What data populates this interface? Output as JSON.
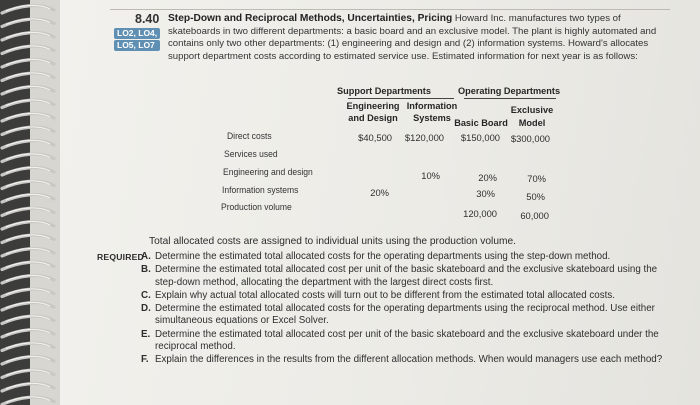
{
  "problem": {
    "number": "8.40",
    "badges": [
      "LO2, LO4,",
      "LO5, LO7"
    ],
    "title": "Step-Down and Reciprocal Methods, Uncertainties, Pricing",
    "intro": "Howard Inc. manufactures two types of skateboards in two different departments: a basic board and an exclusive model. The plant is highly automated and contains only two other departments: (1) engineering and design and (2) information systems. Howard's allocates support department costs according to estimated service use. Estimated information for next year is as follows:"
  },
  "table": {
    "group_headers": {
      "support": "Support Departments",
      "operating": "Operating Departments"
    },
    "col_headers": {
      "eng": [
        "Engineering",
        "and Design"
      ],
      "info": [
        "Information",
        "Systems"
      ],
      "basic": [
        "Basic Board"
      ],
      "excl": [
        "Exclusive",
        "Model"
      ]
    },
    "rows": [
      {
        "label": "Direct costs",
        "eng": "$40,500",
        "info": "$120,000",
        "basic": "$150,000",
        "excl": "$300,000"
      },
      {
        "label": "Services used",
        "eng": "",
        "info": "",
        "basic": "",
        "excl": ""
      },
      {
        "label": "Engineering and design",
        "eng": "",
        "info": "10%",
        "basic": "20%",
        "excl": "70%"
      },
      {
        "label": "Information systems",
        "eng": "20%",
        "info": "",
        "basic": "30%",
        "excl": "50%"
      },
      {
        "label": "Production volume",
        "eng": "",
        "info": "",
        "basic": "120,000",
        "excl": "60,000"
      }
    ]
  },
  "total_note": "Total allocated costs are assigned to individual units using the production volume.",
  "required": {
    "label": "REQUIRED",
    "items": [
      {
        "letter": "A.",
        "text": "Determine the estimated total allocated costs for the operating departments using the step-down method."
      },
      {
        "letter": "B.",
        "text": "Determine the estimated total allocated cost per unit of the basic skateboard and the exclusive skateboard using the step-down method, allocating the department with the largest direct costs first."
      },
      {
        "letter": "C.",
        "text": "Explain why actual total allocated costs will turn out to be different from the estimated total allocated costs."
      },
      {
        "letter": "D.",
        "text": "Determine the estimated total allocated costs for the operating departments using the reciprocal method. Use either simultaneous equations or Excel Solver."
      },
      {
        "letter": "E.",
        "text": "Determine the estimated total allocated cost per unit of the basic skateboard and the exclusive skateboard under the reciprocal method."
      },
      {
        "letter": "F.",
        "text": "Explain the differences in the results from the different allocation methods. When would managers use each method?"
      }
    ]
  }
}
